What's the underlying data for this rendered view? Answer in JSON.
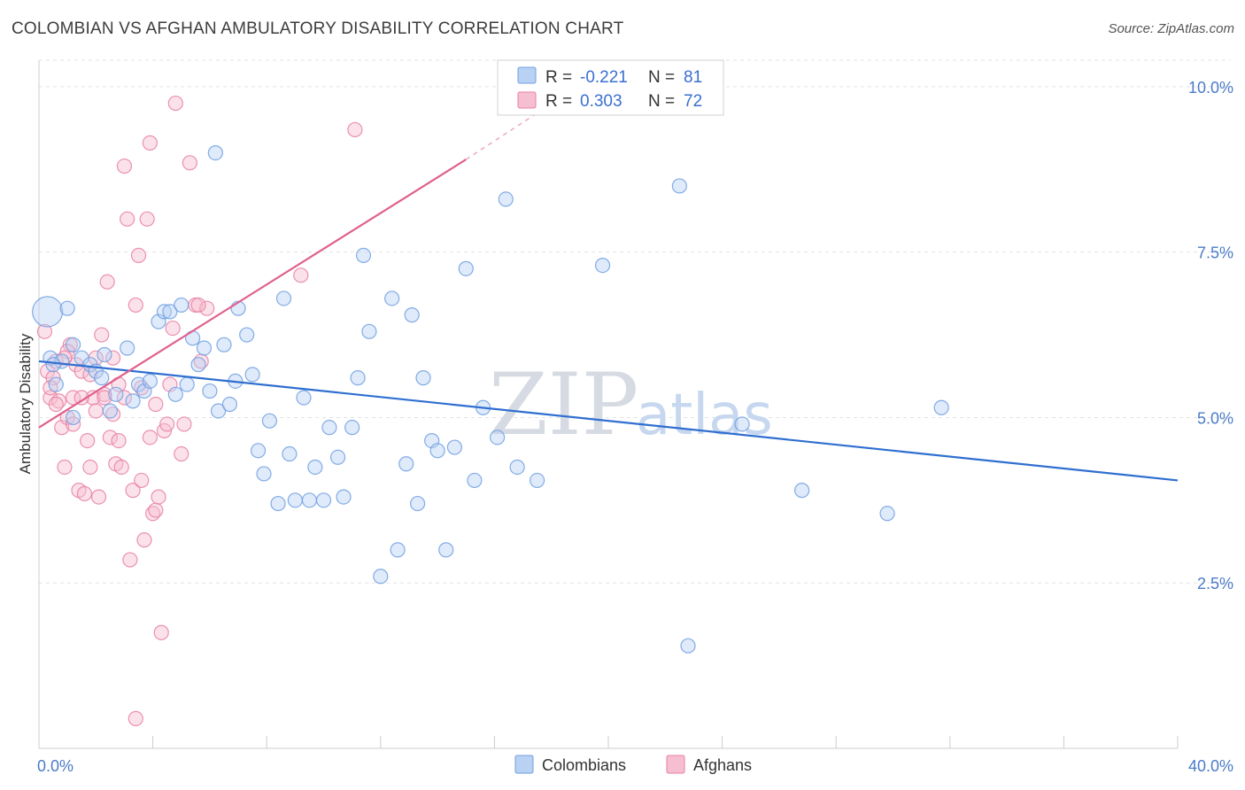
{
  "header": {
    "title": "COLOMBIAN VS AFGHAN AMBULATORY DISABILITY CORRELATION CHART",
    "source": "Source: ZipAtlas.com"
  },
  "colors": {
    "colombians": "#6f9fe0",
    "colombians_fill": "#b9d1f3",
    "afghans": "#e87fa2",
    "afghans_fill": "#f6bfd1",
    "trend_colombians": "#2f6fd0",
    "trend_afghans": "#e0608e",
    "axis_text": "#4a7bc8",
    "grid": "#e3e3e3"
  },
  "watermark": {
    "part1": "ZIP",
    "part2": "atlas"
  },
  "legend": {
    "rows": [
      {
        "series": "colombians",
        "r_label": "R =",
        "r_value": "-0.221",
        "n_label": "N =",
        "n_value": "81"
      },
      {
        "series": "afghans",
        "r_label": "R =",
        "r_value": "0.303",
        "n_label": "N =",
        "n_value": "72"
      }
    ],
    "bottom": [
      {
        "series": "colombians",
        "label": "Colombians"
      },
      {
        "series": "afghans",
        "label": "Afghans"
      }
    ]
  },
  "chart_data": {
    "type": "scatter",
    "title": "COLOMBIAN VS AFGHAN AMBULATORY DISABILITY CORRELATION CHART",
    "xlabel": "",
    "ylabel": "Ambulatory Disability",
    "xlim": [
      0,
      40
    ],
    "ylim": [
      0,
      10.4
    ],
    "x_tick_labels": [
      {
        "value": 0,
        "label": "0.0%"
      },
      {
        "value": 40,
        "label": "40.0%"
      }
    ],
    "x_minor_ticks": [
      4,
      8,
      12,
      16,
      20,
      24,
      28,
      32,
      36
    ],
    "y_ticks": [
      {
        "value": 2.5,
        "label": "2.5%"
      },
      {
        "value": 5.0,
        "label": "5.0%"
      },
      {
        "value": 7.5,
        "label": "7.5%"
      },
      {
        "value": 10.0,
        "label": "10.0%"
      }
    ],
    "grid": true,
    "series": [
      {
        "name": "Colombians",
        "key": "colombians",
        "r": -0.221,
        "n": 81,
        "trend": {
          "x": [
            0,
            40
          ],
          "y": [
            5.85,
            4.05
          ],
          "dashed_extension": false
        },
        "points": [
          [
            0.3,
            6.6
          ],
          [
            0.4,
            5.9
          ],
          [
            0.6,
            5.5
          ],
          [
            0.8,
            5.85
          ],
          [
            1.0,
            6.65
          ],
          [
            1.2,
            6.1
          ],
          [
            1.5,
            5.9
          ],
          [
            1.8,
            5.8
          ],
          [
            2.0,
            5.7
          ],
          [
            2.3,
            5.95
          ],
          [
            2.5,
            5.1
          ],
          [
            2.7,
            5.35
          ],
          [
            3.1,
            6.05
          ],
          [
            3.3,
            5.25
          ],
          [
            3.5,
            5.5
          ],
          [
            3.7,
            5.4
          ],
          [
            3.9,
            5.55
          ],
          [
            4.2,
            6.45
          ],
          [
            4.4,
            6.6
          ],
          [
            4.6,
            6.6
          ],
          [
            4.8,
            5.35
          ],
          [
            5.0,
            6.7
          ],
          [
            5.2,
            5.5
          ],
          [
            5.4,
            6.2
          ],
          [
            5.6,
            5.8
          ],
          [
            5.8,
            6.05
          ],
          [
            6.0,
            5.4
          ],
          [
            6.2,
            9.0
          ],
          [
            6.3,
            5.1
          ],
          [
            6.5,
            6.1
          ],
          [
            6.7,
            5.2
          ],
          [
            6.9,
            5.55
          ],
          [
            7.0,
            6.65
          ],
          [
            7.3,
            6.25
          ],
          [
            7.5,
            5.65
          ],
          [
            7.7,
            4.5
          ],
          [
            7.9,
            4.15
          ],
          [
            8.1,
            4.95
          ],
          [
            8.4,
            3.7
          ],
          [
            8.6,
            6.8
          ],
          [
            8.8,
            4.45
          ],
          [
            9.0,
            3.75
          ],
          [
            9.3,
            5.3
          ],
          [
            9.5,
            3.75
          ],
          [
            9.7,
            4.25
          ],
          [
            10.0,
            3.75
          ],
          [
            10.2,
            4.85
          ],
          [
            10.5,
            4.4
          ],
          [
            10.7,
            3.8
          ],
          [
            11.0,
            4.85
          ],
          [
            11.2,
            5.6
          ],
          [
            11.4,
            7.45
          ],
          [
            11.6,
            6.3
          ],
          [
            12.0,
            2.6
          ],
          [
            12.4,
            6.8
          ],
          [
            12.6,
            3.0
          ],
          [
            12.9,
            4.3
          ],
          [
            13.1,
            6.55
          ],
          [
            13.3,
            3.7
          ],
          [
            13.5,
            5.6
          ],
          [
            13.8,
            4.65
          ],
          [
            14.0,
            4.5
          ],
          [
            14.3,
            3.0
          ],
          [
            14.6,
            4.55
          ],
          [
            15.0,
            7.25
          ],
          [
            15.3,
            4.05
          ],
          [
            15.6,
            5.15
          ],
          [
            16.1,
            4.7
          ],
          [
            16.4,
            8.3
          ],
          [
            16.8,
            4.25
          ],
          [
            17.5,
            4.05
          ],
          [
            19.8,
            7.3
          ],
          [
            22.5,
            8.5
          ],
          [
            22.8,
            1.55
          ],
          [
            24.7,
            4.9
          ],
          [
            26.8,
            3.9
          ],
          [
            29.8,
            3.55
          ],
          [
            31.7,
            5.15
          ],
          [
            1.2,
            5.0
          ],
          [
            2.2,
            5.6
          ],
          [
            0.5,
            5.8
          ]
        ]
      },
      {
        "name": "Afghans",
        "key": "afghans",
        "r": 0.303,
        "n": 72,
        "trend": {
          "x": [
            0,
            15
          ],
          "y": [
            4.85,
            8.9
          ],
          "dashed_to": [
            17.5,
            9.6
          ]
        },
        "points": [
          [
            0.2,
            6.3
          ],
          [
            0.3,
            5.7
          ],
          [
            0.4,
            5.3
          ],
          [
            0.5,
            5.6
          ],
          [
            0.6,
            5.85
          ],
          [
            0.7,
            5.25
          ],
          [
            0.8,
            4.85
          ],
          [
            0.9,
            4.25
          ],
          [
            1.0,
            5.0
          ],
          [
            1.1,
            6.1
          ],
          [
            1.2,
            5.3
          ],
          [
            1.3,
            5.8
          ],
          [
            1.4,
            3.9
          ],
          [
            1.5,
            5.7
          ],
          [
            1.6,
            3.85
          ],
          [
            1.7,
            4.65
          ],
          [
            1.8,
            5.65
          ],
          [
            1.9,
            5.3
          ],
          [
            2.0,
            5.1
          ],
          [
            2.1,
            3.8
          ],
          [
            2.2,
            6.25
          ],
          [
            2.3,
            5.35
          ],
          [
            2.4,
            7.05
          ],
          [
            2.5,
            4.7
          ],
          [
            2.6,
            5.9
          ],
          [
            2.7,
            4.3
          ],
          [
            2.8,
            5.5
          ],
          [
            2.9,
            4.25
          ],
          [
            3.0,
            8.8
          ],
          [
            3.1,
            8.0
          ],
          [
            3.2,
            2.85
          ],
          [
            3.3,
            3.9
          ],
          [
            3.4,
            6.7
          ],
          [
            3.5,
            7.45
          ],
          [
            3.6,
            5.45
          ],
          [
            3.7,
            3.15
          ],
          [
            3.8,
            8.0
          ],
          [
            3.9,
            9.15
          ],
          [
            4.0,
            3.55
          ],
          [
            4.1,
            3.6
          ],
          [
            4.2,
            3.8
          ],
          [
            4.3,
            1.75
          ],
          [
            4.4,
            4.8
          ],
          [
            4.5,
            4.9
          ],
          [
            4.6,
            5.5
          ],
          [
            4.7,
            6.35
          ],
          [
            4.8,
            9.75
          ],
          [
            5.0,
            4.45
          ],
          [
            5.1,
            4.9
          ],
          [
            5.3,
            8.85
          ],
          [
            5.5,
            6.7
          ],
          [
            5.7,
            5.85
          ],
          [
            5.9,
            6.65
          ],
          [
            3.0,
            5.3
          ],
          [
            2.8,
            4.65
          ],
          [
            3.4,
            0.45
          ],
          [
            9.2,
            7.15
          ],
          [
            11.1,
            9.35
          ],
          [
            1.0,
            6.0
          ],
          [
            0.9,
            5.9
          ],
          [
            1.5,
            5.3
          ],
          [
            2.0,
            5.9
          ],
          [
            2.3,
            5.3
          ],
          [
            3.9,
            4.7
          ],
          [
            4.1,
            5.2
          ],
          [
            0.6,
            5.2
          ],
          [
            1.2,
            4.9
          ],
          [
            2.6,
            5.05
          ],
          [
            3.6,
            4.05
          ],
          [
            5.6,
            6.7
          ],
          [
            1.8,
            4.25
          ],
          [
            0.4,
            5.45
          ]
        ]
      }
    ]
  }
}
